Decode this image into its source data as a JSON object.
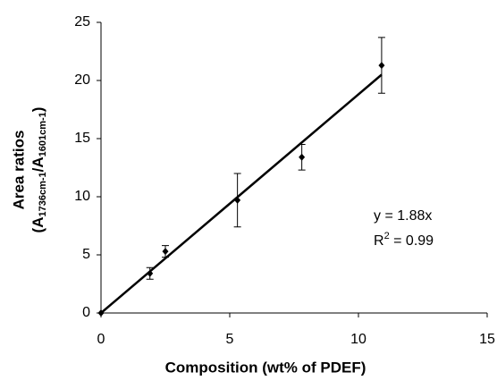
{
  "chart_data": {
    "type": "scatter",
    "xlabel": "Composition (wt% of PDEF)",
    "ylabel": "Area ratios",
    "ylabel_formula": [
      "(A",
      "1736cm-1",
      "/A",
      "1601cm-1",
      ")"
    ],
    "annotations": {
      "equation": "y = 1.88x",
      "r2": [
        "R",
        "2",
        " = 0.99"
      ]
    },
    "points": {
      "x": [
        0,
        1.9,
        2.5,
        5.3,
        7.8,
        10.9
      ],
      "values": [
        0,
        3.4,
        5.3,
        9.7,
        13.4,
        21.3
      ],
      "errors": [
        null,
        0.5,
        0.5,
        2.3,
        1.1,
        2.4
      ],
      "color": "#000000"
    },
    "fit": {
      "x": [
        0,
        10.9
      ],
      "values": [
        0,
        20.5
      ],
      "color": "#000000"
    },
    "xlim": [
      0,
      15
    ],
    "xticks": [
      0,
      5,
      10,
      15
    ],
    "ylim": [
      0,
      25
    ],
    "yticks": [
      0,
      5,
      10,
      15,
      20,
      25
    ],
    "grid": false
  }
}
